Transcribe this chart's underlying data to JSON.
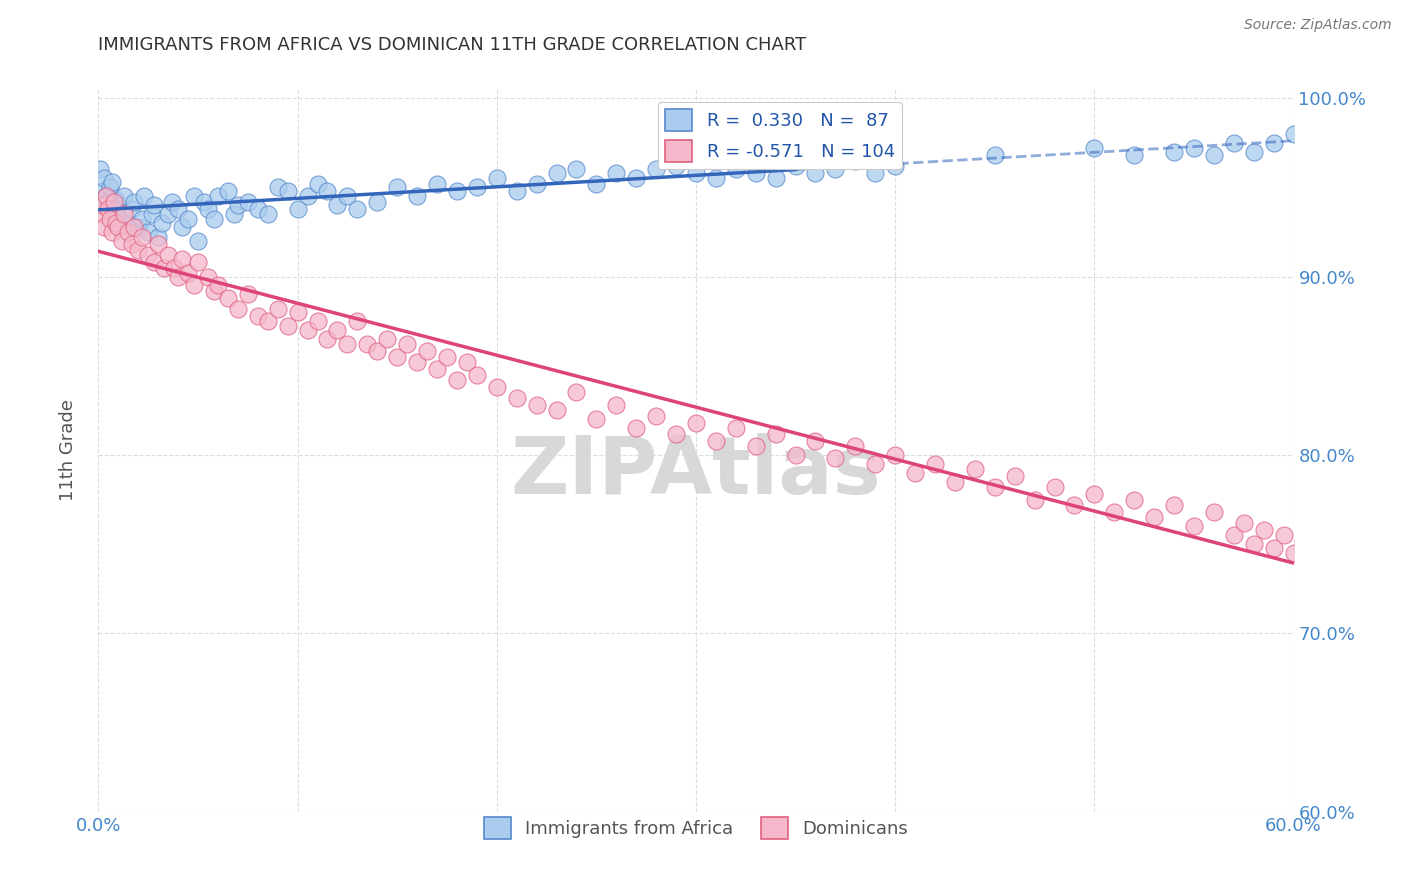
{
  "title": "IMMIGRANTS FROM AFRICA VS DOMINICAN 11TH GRADE CORRELATION CHART",
  "source": "Source: ZipAtlas.com",
  "ylabel_text": "11th Grade",
  "x_min": 0.0,
  "x_max": 0.6,
  "y_min": 0.6,
  "y_max": 1.005,
  "x_ticks": [
    0.0,
    0.1,
    0.2,
    0.3,
    0.4,
    0.5,
    0.6
  ],
  "x_tick_labels": [
    "0.0%",
    "",
    "",
    "",
    "",
    "",
    "60.0%"
  ],
  "y_ticks": [
    0.6,
    0.7,
    0.8,
    0.9,
    1.0
  ],
  "y_tick_labels": [
    "60.0%",
    "70.0%",
    "80.0%",
    "90.0%",
    "100.0%"
  ],
  "africa_R": 0.33,
  "africa_N": 87,
  "dominican_R": -0.571,
  "dominican_N": 104,
  "africa_color": "#aaccee",
  "dominican_color": "#f5b8cb",
  "africa_edge_color": "#5588cc",
  "dominican_edge_color": "#e06080",
  "africa_line_color": "#3366bb",
  "dominican_line_color": "#dd4477",
  "africa_line_solid_end": 0.35,
  "africa_scatter_x": [
    0.001,
    0.002,
    0.003,
    0.004,
    0.005,
    0.006,
    0.007,
    0.008,
    0.009,
    0.01,
    0.012,
    0.013,
    0.015,
    0.017,
    0.018,
    0.02,
    0.022,
    0.023,
    0.025,
    0.027,
    0.028,
    0.03,
    0.032,
    0.035,
    0.037,
    0.04,
    0.042,
    0.045,
    0.048,
    0.05,
    0.053,
    0.055,
    0.058,
    0.06,
    0.065,
    0.068,
    0.07,
    0.075,
    0.08,
    0.085,
    0.09,
    0.095,
    0.1,
    0.105,
    0.11,
    0.115,
    0.12,
    0.125,
    0.13,
    0.14,
    0.15,
    0.16,
    0.17,
    0.18,
    0.19,
    0.2,
    0.21,
    0.22,
    0.23,
    0.24,
    0.25,
    0.26,
    0.27,
    0.28,
    0.29,
    0.3,
    0.31,
    0.32,
    0.33,
    0.34,
    0.35,
    0.36,
    0.37,
    0.38,
    0.39,
    0.4,
    0.45,
    0.5,
    0.52,
    0.54,
    0.55,
    0.56,
    0.57,
    0.58,
    0.59,
    0.6,
    0.61
  ],
  "africa_scatter_y": [
    0.96,
    0.948,
    0.955,
    0.945,
    0.942,
    0.95,
    0.953,
    0.938,
    0.943,
    0.94,
    0.935,
    0.945,
    0.93,
    0.938,
    0.942,
    0.928,
    0.932,
    0.945,
    0.925,
    0.935,
    0.94,
    0.922,
    0.93,
    0.935,
    0.942,
    0.938,
    0.928,
    0.932,
    0.945,
    0.92,
    0.942,
    0.938,
    0.932,
    0.945,
    0.948,
    0.935,
    0.94,
    0.942,
    0.938,
    0.935,
    0.95,
    0.948,
    0.938,
    0.945,
    0.952,
    0.948,
    0.94,
    0.945,
    0.938,
    0.942,
    0.95,
    0.945,
    0.952,
    0.948,
    0.95,
    0.955,
    0.948,
    0.952,
    0.958,
    0.96,
    0.952,
    0.958,
    0.955,
    0.96,
    0.962,
    0.958,
    0.955,
    0.96,
    0.958,
    0.955,
    0.962,
    0.958,
    0.96,
    0.965,
    0.958,
    0.962,
    0.968,
    0.972,
    0.968,
    0.97,
    0.972,
    0.968,
    0.975,
    0.97,
    0.975,
    0.98,
    0.985
  ],
  "dominican_scatter_x": [
    0.001,
    0.002,
    0.003,
    0.004,
    0.005,
    0.006,
    0.007,
    0.008,
    0.009,
    0.01,
    0.012,
    0.013,
    0.015,
    0.017,
    0.018,
    0.02,
    0.022,
    0.025,
    0.028,
    0.03,
    0.033,
    0.035,
    0.038,
    0.04,
    0.042,
    0.045,
    0.048,
    0.05,
    0.055,
    0.058,
    0.06,
    0.065,
    0.07,
    0.075,
    0.08,
    0.085,
    0.09,
    0.095,
    0.1,
    0.105,
    0.11,
    0.115,
    0.12,
    0.125,
    0.13,
    0.135,
    0.14,
    0.145,
    0.15,
    0.155,
    0.16,
    0.165,
    0.17,
    0.175,
    0.18,
    0.185,
    0.19,
    0.2,
    0.21,
    0.22,
    0.23,
    0.24,
    0.25,
    0.26,
    0.27,
    0.28,
    0.29,
    0.3,
    0.31,
    0.32,
    0.33,
    0.34,
    0.35,
    0.36,
    0.37,
    0.38,
    0.39,
    0.4,
    0.41,
    0.42,
    0.43,
    0.44,
    0.45,
    0.46,
    0.47,
    0.48,
    0.49,
    0.5,
    0.51,
    0.52,
    0.53,
    0.54,
    0.55,
    0.56,
    0.57,
    0.575,
    0.58,
    0.585,
    0.59,
    0.595,
    0.6,
    0.605,
    0.608,
    0.61
  ],
  "dominican_scatter_y": [
    0.935,
    0.94,
    0.928,
    0.945,
    0.938,
    0.932,
    0.925,
    0.942,
    0.93,
    0.928,
    0.92,
    0.935,
    0.925,
    0.918,
    0.928,
    0.915,
    0.922,
    0.912,
    0.908,
    0.918,
    0.905,
    0.912,
    0.905,
    0.9,
    0.91,
    0.902,
    0.895,
    0.908,
    0.9,
    0.892,
    0.895,
    0.888,
    0.882,
    0.89,
    0.878,
    0.875,
    0.882,
    0.872,
    0.88,
    0.87,
    0.875,
    0.865,
    0.87,
    0.862,
    0.875,
    0.862,
    0.858,
    0.865,
    0.855,
    0.862,
    0.852,
    0.858,
    0.848,
    0.855,
    0.842,
    0.852,
    0.845,
    0.838,
    0.832,
    0.828,
    0.825,
    0.835,
    0.82,
    0.828,
    0.815,
    0.822,
    0.812,
    0.818,
    0.808,
    0.815,
    0.805,
    0.812,
    0.8,
    0.808,
    0.798,
    0.805,
    0.795,
    0.8,
    0.79,
    0.795,
    0.785,
    0.792,
    0.782,
    0.788,
    0.775,
    0.782,
    0.772,
    0.778,
    0.768,
    0.775,
    0.765,
    0.772,
    0.76,
    0.768,
    0.755,
    0.762,
    0.75,
    0.758,
    0.748,
    0.755,
    0.745,
    0.752,
    0.74,
    0.748
  ],
  "background_color": "#ffffff",
  "grid_color": "#dddddd",
  "grid_linestyle": "--",
  "title_color": "#333333",
  "axis_label_color": "#555555",
  "tick_label_color": "#4488cc",
  "watermark_text": "ZIPAtlas",
  "watermark_color": "#d8d8d8",
  "legend_R_color": "#2255aa",
  "legend_label_africa": "Immigrants from Africa",
  "legend_label_dominican": "Dominicans"
}
